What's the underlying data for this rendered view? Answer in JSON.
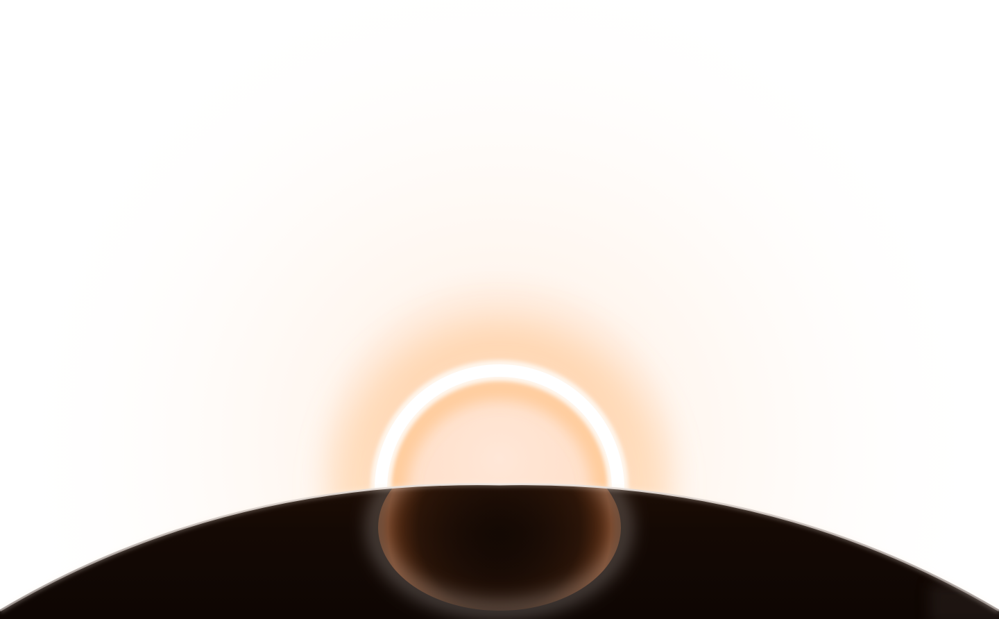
{
  "scene": {
    "description_name": "eclipse-hero-graphic",
    "colors": {
      "background": "#ffffff",
      "glow_outer": "#fde7d6",
      "glow_mid": "#ffd6ad",
      "ring_core": "#ffffff",
      "ring_inner_glow": "#ffc98a",
      "planet_dark": "#120803",
      "planet_mid": "#2a1408",
      "planet_highlight": "#7a3d1a",
      "rim_light": "#bfb4ae"
    }
  }
}
